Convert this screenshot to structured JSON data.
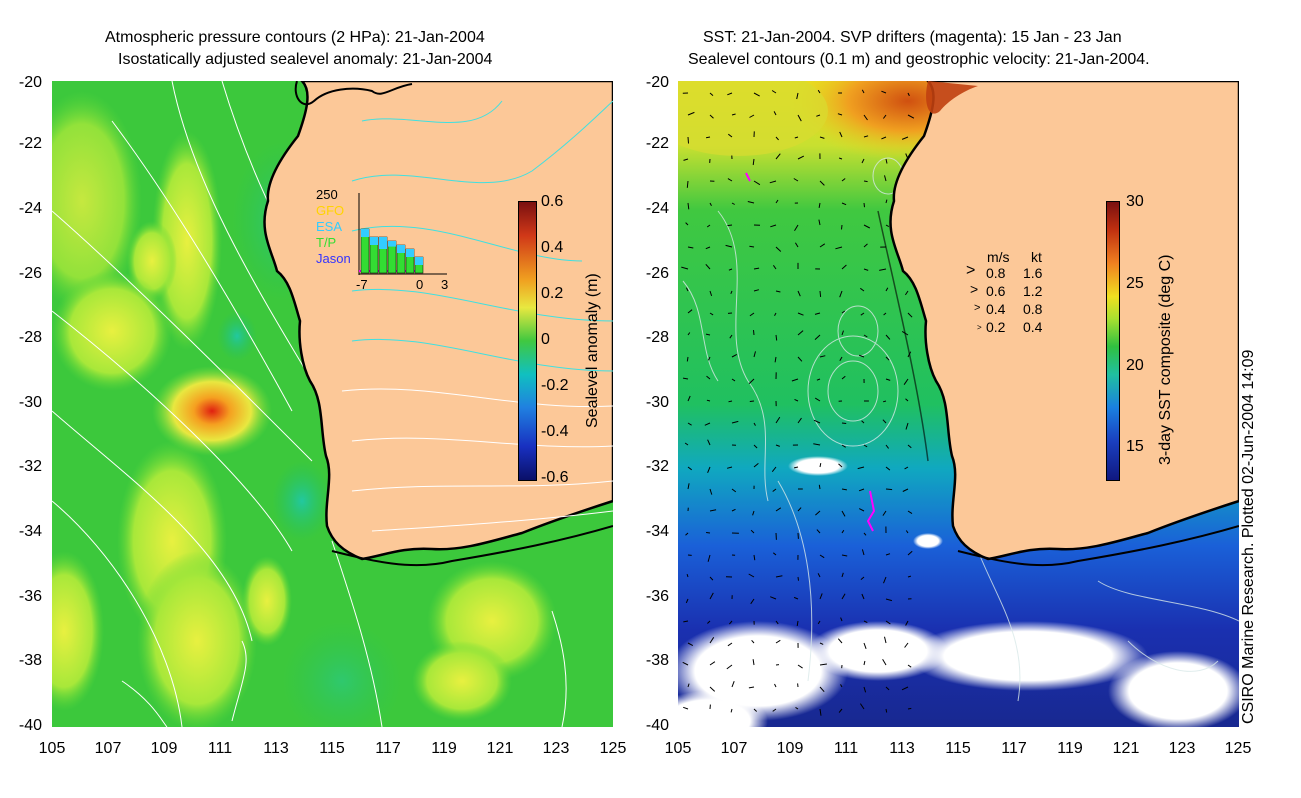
{
  "left_panel": {
    "title_line1": "Atmospheric pressure contours (2 HPa): 21-Jan-2004",
    "title_line2": "Isostatically adjusted sealevel anomaly: 21-Jan-2004",
    "colorbar_label": "Sealevel anomaly (m)",
    "colorbar_ticks": [
      "0.6",
      "0.4",
      "0.2",
      "0",
      "-0.2",
      "-0.4",
      "-0.6"
    ],
    "inset": {
      "ymax_label": "250",
      "legend": [
        "GFO",
        "ESA",
        "T/P",
        "Jason"
      ],
      "legend_colors": [
        "#ffd400",
        "#33ccff",
        "#33dd33",
        "#3333ff"
      ],
      "x_ticks": [
        "-7",
        "0",
        "3"
      ],
      "bars_tp": [
        0.55,
        0.45,
        0.45,
        0.4,
        0.35,
        0.3,
        0.2
      ],
      "bars_esa": [
        0.5,
        0.4,
        0.35,
        0.38,
        0.3,
        0.25,
        0.15
      ]
    }
  },
  "right_panel": {
    "title_line1": "SST: 21-Jan-2004. SVP drifters (magenta): 15 Jan - 23 Jan",
    "title_line2": "Sealevel contours (0.1 m) and geostrophic velocity: 21-Jan-2004.",
    "colorbar_label": "3-day SST composite (deg C)",
    "colorbar_ticks": [
      "30",
      "25",
      "20",
      "15"
    ],
    "velocity_key": {
      "header_ms": "m/s",
      "header_kt": "kt",
      "rows": [
        {
          "ms": "0.8",
          "kt": "1.6"
        },
        {
          "ms": "0.6",
          "kt": "1.2"
        },
        {
          "ms": "0.4",
          "kt": "0.8"
        },
        {
          "ms": "0.2",
          "kt": "0.4"
        }
      ]
    }
  },
  "axes": {
    "y_ticks": [
      "-20",
      "-22",
      "-24",
      "-26",
      "-28",
      "-30",
      "-32",
      "-34",
      "-36",
      "-38",
      "-40"
    ],
    "x_ticks": [
      "105",
      "107",
      "109",
      "111",
      "113",
      "115",
      "117",
      "119",
      "121",
      "123",
      "125"
    ]
  },
  "credit": "CSIRO Marine Research. Plotted 02-Jun-2004 14:09",
  "colors": {
    "land": "#fcc898",
    "ocean_green": "#2cc43a",
    "ocean_yellow": "#c8f040",
    "coast": "#000000"
  }
}
